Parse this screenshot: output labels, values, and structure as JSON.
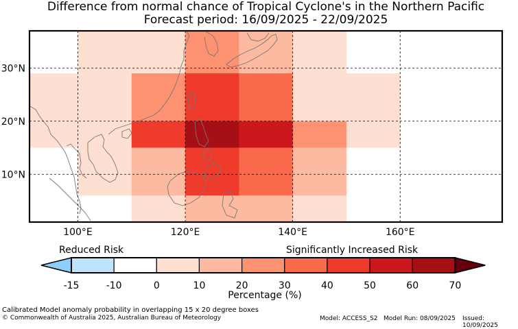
{
  "title": {
    "line1": "Difference from normal chance of Tropical Cyclone's in the Northern Pacific",
    "line2": "Forecast period: 16/09/2025 - 22/09/2025"
  },
  "map": {
    "lon_range": [
      91,
      179
    ],
    "lat_range": [
      1,
      37
    ],
    "x_ticks": [
      "100°E",
      "120°E",
      "140°E",
      "160°E"
    ],
    "x_tick_values": [
      100,
      120,
      140,
      160
    ],
    "y_ticks": [
      "30°N",
      "20°N",
      "10°N"
    ],
    "y_tick_values": [
      30,
      20,
      10
    ],
    "gridlines": true,
    "box_size_deg": "15 x 20",
    "cells": [
      {
        "lon": [
          91,
          100
        ],
        "lat": [
          29,
          37
        ],
        "value": -5
      },
      {
        "lon": [
          100,
          110
        ],
        "lat": [
          29,
          37
        ],
        "value": 0
      },
      {
        "lon": [
          110,
          120
        ],
        "lat": [
          29,
          37
        ],
        "value": 5
      },
      {
        "lon": [
          120,
          130
        ],
        "lat": [
          29,
          37
        ],
        "value": 20
      },
      {
        "lon": [
          130,
          140
        ],
        "lat": [
          29,
          37
        ],
        "value": 15
      },
      {
        "lon": [
          140,
          150
        ],
        "lat": [
          29,
          37
        ],
        "value": 5
      },
      {
        "lon": [
          150,
          160
        ],
        "lat": [
          29,
          37
        ],
        "value": -5
      },
      {
        "lon": [
          160,
          179
        ],
        "lat": [
          29,
          37
        ],
        "value": -5
      },
      {
        "lon": [
          91,
          100
        ],
        "lat": [
          20,
          29
        ],
        "value": 0
      },
      {
        "lon": [
          100,
          110
        ],
        "lat": [
          20,
          29
        ],
        "value": 5
      },
      {
        "lon": [
          110,
          120
        ],
        "lat": [
          20,
          29
        ],
        "value": 20
      },
      {
        "lon": [
          120,
          130
        ],
        "lat": [
          20,
          29
        ],
        "value": 40
      },
      {
        "lon": [
          130,
          140
        ],
        "lat": [
          20,
          29
        ],
        "value": 30
      },
      {
        "lon": [
          140,
          150
        ],
        "lat": [
          20,
          29
        ],
        "value": 5
      },
      {
        "lon": [
          150,
          160
        ],
        "lat": [
          20,
          29
        ],
        "value": 0
      },
      {
        "lon": [
          160,
          179
        ],
        "lat": [
          20,
          29
        ],
        "value": -5
      },
      {
        "lon": [
          91,
          100
        ],
        "lat": [
          15,
          20
        ],
        "value": 0
      },
      {
        "lon": [
          100,
          110
        ],
        "lat": [
          15,
          20
        ],
        "value": 5
      },
      {
        "lon": [
          110,
          120
        ],
        "lat": [
          15,
          20
        ],
        "value": 40
      },
      {
        "lon": [
          120,
          130
        ],
        "lat": [
          15,
          20
        ],
        "value": 60
      },
      {
        "lon": [
          130,
          140
        ],
        "lat": [
          15,
          20
        ],
        "value": 50
      },
      {
        "lon": [
          140,
          150
        ],
        "lat": [
          15,
          20
        ],
        "value": 20
      },
      {
        "lon": [
          150,
          160
        ],
        "lat": [
          15,
          20
        ],
        "value": 0
      },
      {
        "lon": [
          160,
          170
        ],
        "lat": [
          15,
          20
        ],
        "value": -10
      },
      {
        "lon": [
          170,
          179
        ],
        "lat": [
          15,
          20
        ],
        "value": -5
      },
      {
        "lon": [
          91,
          100
        ],
        "lat": [
          6,
          15
        ],
        "value": -5
      },
      {
        "lon": [
          100,
          110
        ],
        "lat": [
          6,
          15
        ],
        "value": 0
      },
      {
        "lon": [
          110,
          120
        ],
        "lat": [
          6,
          15
        ],
        "value": 15
      },
      {
        "lon": [
          120,
          130
        ],
        "lat": [
          6,
          15
        ],
        "value": 40
      },
      {
        "lon": [
          130,
          140
        ],
        "lat": [
          6,
          15
        ],
        "value": 30
      },
      {
        "lon": [
          140,
          150
        ],
        "lat": [
          6,
          15
        ],
        "value": 15
      },
      {
        "lon": [
          150,
          160
        ],
        "lat": [
          6,
          15
        ],
        "value": -5
      },
      {
        "lon": [
          160,
          179
        ],
        "lat": [
          6,
          15
        ],
        "value": -10
      },
      {
        "lon": [
          91,
          110
        ],
        "lat": [
          1,
          6
        ],
        "value": -10
      },
      {
        "lon": [
          110,
          120
        ],
        "lat": [
          1,
          6
        ],
        "value": 0
      },
      {
        "lon": [
          120,
          140
        ],
        "lat": [
          1,
          6
        ],
        "value": 15
      },
      {
        "lon": [
          140,
          150
        ],
        "lat": [
          1,
          6
        ],
        "value": 0
      },
      {
        "lon": [
          150,
          179
        ],
        "lat": [
          1,
          6
        ],
        "value": -10
      }
    ]
  },
  "legend": {
    "reduced_label": "Reduced Risk",
    "increased_label": "Significantly Increased Risk",
    "ticks": [
      "-15",
      "-10",
      "0",
      "10",
      "20",
      "30",
      "40",
      "50",
      "60",
      "70"
    ],
    "bins": [
      {
        "range": [
          -15,
          -10
        ],
        "color": "#bfe4fd"
      },
      {
        "range": [
          -10,
          0
        ],
        "color": "#ffffff"
      },
      {
        "range": [
          0,
          10
        ],
        "color": "#fee0d3"
      },
      {
        "range": [
          10,
          20
        ],
        "color": "#fcbba1"
      },
      {
        "range": [
          20,
          30
        ],
        "color": "#fc9272"
      },
      {
        "range": [
          30,
          40
        ],
        "color": "#fb6a4a"
      },
      {
        "range": [
          40,
          50
        ],
        "color": "#ef3b2c"
      },
      {
        "range": [
          50,
          60
        ],
        "color": "#cb181d"
      },
      {
        "range": [
          60,
          70
        ],
        "color": "#a50f15"
      }
    ],
    "under_color": "#8dcff8",
    "over_color": "#67000d",
    "xlabel": "Percentage (%)"
  },
  "footer": {
    "line1": "Calibrated Model anomaly probability in overlapping 15 x 20 degree boxes",
    "line2": "© Commonwealth of Australia 2025, Australian Bureau of Meteorology",
    "model": "Model: ACCESS_S2",
    "run": "Model Run: 08/09/2025",
    "issued": "Issued: 10/09/2025"
  }
}
